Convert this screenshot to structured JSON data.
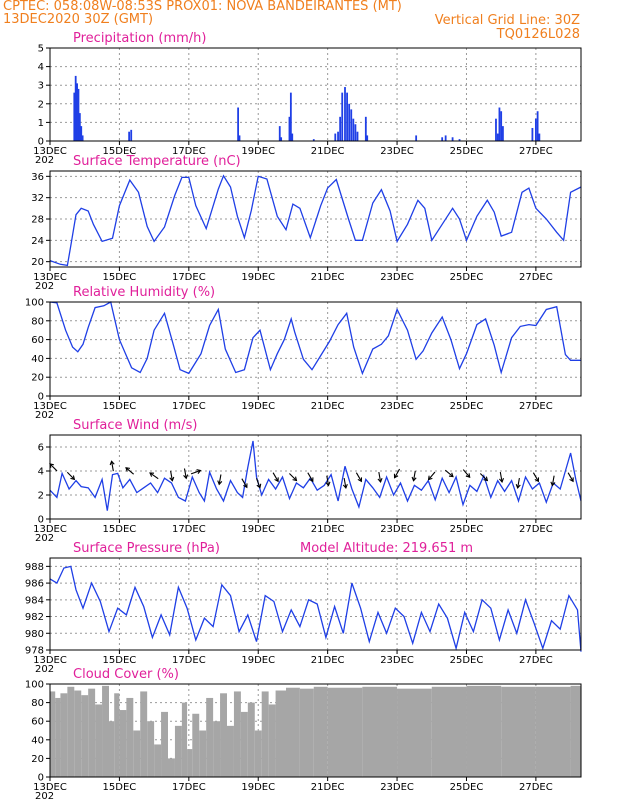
{
  "header": {
    "line1_left": "CPTEC:   058:08W-08:53S   PROX01: NOVA BANDEIRANTES (MT)",
    "line2_left": "13DEC2020 30Z (GMT)",
    "line2_right": "Vertical Grid Line: 30Z",
    "line3_right": "TQ0126L028"
  },
  "colors": {
    "header": "#f07f1e",
    "title": "#e0209a",
    "series": "#1f3fe6",
    "cloud": "#a6a6a6"
  },
  "x_axis": {
    "tick_labels": [
      "13DEC",
      "15DEC",
      "17DEC",
      "19DEC",
      "21DEC",
      "23DEC",
      "25DEC",
      "27DEC"
    ],
    "tick_days": [
      0,
      2,
      4,
      6,
      8,
      10,
      12,
      14
    ],
    "range_days": [
      0,
      15.3
    ],
    "year_fragment": "202"
  },
  "chart_data": [
    {
      "id": "precip",
      "type": "bar",
      "title": "Precipitation (mm/h)",
      "ylim": [
        0,
        5
      ],
      "yticks": [
        0,
        1,
        2,
        3,
        4,
        5
      ],
      "grid": true,
      "note": "x values in days after 13DEC 00Z",
      "x": [
        0.7,
        0.74,
        0.78,
        0.82,
        0.86,
        0.9,
        0.94,
        2.28,
        2.34,
        5.42,
        5.46,
        6.62,
        6.66,
        6.9,
        6.94,
        6.98,
        7.6,
        8.22,
        8.3,
        8.36,
        8.42,
        8.5,
        8.56,
        8.62,
        8.68,
        8.74,
        8.8,
        8.86,
        9.1,
        9.14,
        10.55,
        11.3,
        11.4,
        11.6,
        11.8,
        12.85,
        12.9,
        12.95,
        13.0,
        13.05,
        13.9,
        14.0,
        14.05,
        14.1
      ],
      "values": [
        2.6,
        3.5,
        3.1,
        2.8,
        1.5,
        0.8,
        0.3,
        0.5,
        0.6,
        1.8,
        0.3,
        0.8,
        0.2,
        1.3,
        2.6,
        0.4,
        0.1,
        0.4,
        0.5,
        1.3,
        2.6,
        2.9,
        2.6,
        2.0,
        1.7,
        1.2,
        0.9,
        0.5,
        1.3,
        0.3,
        0.3,
        0.2,
        0.3,
        0.2,
        0.1,
        1.2,
        0.4,
        1.8,
        1.6,
        0.8,
        0.7,
        1.2,
        1.6,
        0.4
      ]
    },
    {
      "id": "temp",
      "type": "line",
      "title": "Surface Temperature (nC)",
      "ylim": [
        19,
        37
      ],
      "yticks": [
        20,
        24,
        28,
        32,
        36
      ],
      "grid": true,
      "x": [
        0,
        0.3,
        0.5,
        0.6,
        0.75,
        0.9,
        1.1,
        1.25,
        1.5,
        1.8,
        2.0,
        2.3,
        2.55,
        2.8,
        3.0,
        3.3,
        3.6,
        3.8,
        4.0,
        4.2,
        4.5,
        4.85,
        5.0,
        5.2,
        5.4,
        5.6,
        5.8,
        6.0,
        6.25,
        6.55,
        6.8,
        7.0,
        7.2,
        7.5,
        7.8,
        8.0,
        8.25,
        8.6,
        8.8,
        9.0,
        9.3,
        9.55,
        9.8,
        10.0,
        10.3,
        10.6,
        10.8,
        11.0,
        11.3,
        11.6,
        11.8,
        12.0,
        12.3,
        12.6,
        12.8,
        13.0,
        13.3,
        13.6,
        13.8,
        14.0,
        14.3,
        14.6,
        14.8,
        15.0,
        15.3
      ],
      "y": [
        20.2,
        19.5,
        19.3,
        23.0,
        28.8,
        30.0,
        29.5,
        27.0,
        23.8,
        24.4,
        30.5,
        35.3,
        33.0,
        26.6,
        23.8,
        26.5,
        32.5,
        35.8,
        35.8,
        30.5,
        26.2,
        33.6,
        36.1,
        34.0,
        28.5,
        24.5,
        29.6,
        36.0,
        35.5,
        28.5,
        26.0,
        30.8,
        30.0,
        24.5,
        30.5,
        33.8,
        35.4,
        28.0,
        24.0,
        24.0,
        31.0,
        33.5,
        29.5,
        23.8,
        27.0,
        31.5,
        30.0,
        24.0,
        27.0,
        30.0,
        28.0,
        24.0,
        28.5,
        31.5,
        29.3,
        24.8,
        25.5,
        33.0,
        33.8,
        30.0,
        28.0,
        25.5,
        24.0,
        33.0,
        34.0
      ]
    },
    {
      "id": "rh",
      "type": "line",
      "title": "Relative Humidity (%)",
      "ylim": [
        0,
        100
      ],
      "yticks": [
        0,
        20,
        40,
        60,
        80,
        100
      ],
      "grid": true,
      "x": [
        0,
        0.2,
        0.45,
        0.65,
        0.8,
        0.95,
        1.1,
        1.3,
        1.55,
        1.75,
        2.0,
        2.35,
        2.6,
        2.8,
        3.0,
        3.3,
        3.55,
        3.75,
        4.0,
        4.35,
        4.6,
        4.85,
        5.05,
        5.35,
        5.6,
        5.85,
        6.05,
        6.35,
        6.55,
        6.75,
        6.95,
        7.05,
        7.3,
        7.55,
        7.75,
        8.05,
        8.3,
        8.55,
        8.75,
        9.0,
        9.3,
        9.55,
        9.75,
        10.0,
        10.3,
        10.55,
        10.75,
        11.0,
        11.3,
        11.55,
        11.8,
        12.0,
        12.3,
        12.55,
        12.8,
        13.0,
        13.3,
        13.55,
        13.8,
        14.0,
        14.3,
        14.6,
        14.85,
        15.0,
        15.3
      ],
      "y": [
        100,
        99,
        70,
        52,
        47,
        55,
        73,
        94,
        96,
        100,
        60,
        30,
        25,
        40,
        70,
        88,
        55,
        28,
        24,
        45,
        75,
        92,
        50,
        25,
        28,
        62,
        70,
        28,
        45,
        60,
        82,
        68,
        39,
        28,
        40,
        58,
        76,
        88,
        52,
        24,
        50,
        55,
        64,
        92,
        70,
        39,
        48,
        67,
        84,
        60,
        29,
        45,
        76,
        82,
        54,
        25,
        62,
        74,
        76,
        75,
        92,
        95,
        44,
        38,
        38
      ]
    },
    {
      "id": "wind",
      "type": "line",
      "title": "Surface Wind (m/s)",
      "ylim": [
        0,
        7
      ],
      "yticks": [
        0,
        2,
        4,
        6
      ],
      "grid": true,
      "x": [
        0,
        0.2,
        0.35,
        0.55,
        0.75,
        0.9,
        1.1,
        1.3,
        1.5,
        1.65,
        1.8,
        1.95,
        2.1,
        2.3,
        2.5,
        2.7,
        2.9,
        3.1,
        3.3,
        3.5,
        3.7,
        3.9,
        4.1,
        4.3,
        4.45,
        4.6,
        4.8,
        5.0,
        5.2,
        5.4,
        5.55,
        5.7,
        5.85,
        5.95,
        6.1,
        6.3,
        6.5,
        6.7,
        6.9,
        7.1,
        7.3,
        7.5,
        7.7,
        7.9,
        8.1,
        8.3,
        8.5,
        8.7,
        8.9,
        9.1,
        9.3,
        9.5,
        9.7,
        9.9,
        10.1,
        10.3,
        10.5,
        10.7,
        10.9,
        11.1,
        11.3,
        11.5,
        11.7,
        11.9,
        12.1,
        12.3,
        12.5,
        12.7,
        12.9,
        13.1,
        13.3,
        13.5,
        13.7,
        13.9,
        14.1,
        14.3,
        14.5,
        14.7,
        14.85,
        15.0,
        15.15,
        15.3
      ],
      "y": [
        2.4,
        1.8,
        3.8,
        2.5,
        3.2,
        2.7,
        2.6,
        1.8,
        3.3,
        0.7,
        3.7,
        3.8,
        2.6,
        3.3,
        2.2,
        2.6,
        3.0,
        2.2,
        3.4,
        3.0,
        1.8,
        1.5,
        3.5,
        2.2,
        1.5,
        3.9,
        2.5,
        1.5,
        3.2,
        2.2,
        1.8,
        4.3,
        6.5,
        3.5,
        2.0,
        3.3,
        2.5,
        3.5,
        1.7,
        3.0,
        2.6,
        3.4,
        2.4,
        2.8,
        3.7,
        1.5,
        4.4,
        2.5,
        1.0,
        3.3,
        2.6,
        1.8,
        3.5,
        2.0,
        3.0,
        1.5,
        2.8,
        2.4,
        3.2,
        1.6,
        3.4,
        2.2,
        3.5,
        1.2,
        2.8,
        2.3,
        3.6,
        1.8,
        3.2,
        2.3,
        3.2,
        1.5,
        3.5,
        2.5,
        3.0,
        1.4,
        3.0,
        2.5,
        4.0,
        5.5,
        3.3,
        1.5
      ]
    },
    {
      "id": "pres",
      "type": "line",
      "title": "Surface Pressure (hPa)",
      "annotation": "Model Altitude: 219.651 m",
      "ylim": [
        978,
        989
      ],
      "yticks": [
        978,
        980,
        982,
        984,
        986,
        988
      ],
      "grid": true,
      "x": [
        0,
        0.2,
        0.4,
        0.6,
        0.75,
        0.95,
        1.2,
        1.45,
        1.7,
        1.95,
        2.2,
        2.45,
        2.7,
        2.95,
        3.2,
        3.45,
        3.7,
        3.95,
        4.2,
        4.45,
        4.7,
        4.95,
        5.2,
        5.45,
        5.7,
        5.95,
        6.2,
        6.45,
        6.7,
        6.95,
        7.2,
        7.45,
        7.7,
        7.95,
        8.2,
        8.45,
        8.7,
        8.95,
        9.2,
        9.45,
        9.7,
        9.95,
        10.2,
        10.45,
        10.7,
        10.95,
        11.2,
        11.45,
        11.7,
        11.95,
        12.2,
        12.45,
        12.7,
        12.95,
        13.2,
        13.45,
        13.7,
        13.95,
        14.2,
        14.45,
        14.7,
        14.95,
        15.2,
        15.3
      ],
      "y": [
        986.5,
        986.0,
        987.8,
        988.0,
        985.2,
        983.0,
        986.0,
        983.8,
        980.2,
        983.0,
        982.2,
        985.5,
        983.2,
        979.5,
        982.2,
        979.8,
        985.5,
        983.0,
        979.2,
        981.8,
        980.8,
        985.8,
        984.5,
        980.2,
        982.2,
        979.0,
        984.5,
        983.8,
        980.2,
        982.8,
        980.8,
        984.0,
        983.5,
        979.5,
        983.2,
        980.0,
        986.0,
        983.0,
        979.0,
        982.5,
        980.0,
        983.0,
        982.0,
        978.8,
        982.5,
        980.2,
        983.5,
        981.8,
        978.2,
        982.5,
        980.2,
        984.0,
        983.0,
        979.2,
        982.8,
        980.0,
        984.0,
        981.2,
        978.2,
        981.5,
        980.5,
        984.5,
        982.8,
        977.8
      ]
    },
    {
      "id": "cloud",
      "type": "area",
      "title": "Cloud Cover (%)",
      "ylim": [
        0,
        100
      ],
      "yticks": [
        0,
        20,
        40,
        60,
        80,
        100
      ],
      "grid": true,
      "x": [
        0,
        0.15,
        0.3,
        0.5,
        0.7,
        0.9,
        1.1,
        1.3,
        1.5,
        1.7,
        1.85,
        2.0,
        2.2,
        2.4,
        2.6,
        2.8,
        3.0,
        3.2,
        3.4,
        3.6,
        3.8,
        3.95,
        4.1,
        4.3,
        4.5,
        4.7,
        4.9,
        5.1,
        5.3,
        5.5,
        5.7,
        5.9,
        6.1,
        6.3,
        6.5,
        6.8,
        7.2,
        7.6,
        8.0,
        9.0,
        10.0,
        11.0,
        12.0,
        13.0,
        14.0,
        15.0,
        15.3
      ],
      "y": [
        92,
        85,
        90,
        97,
        93,
        88,
        95,
        78,
        98,
        60,
        90,
        72,
        85,
        50,
        92,
        60,
        35,
        70,
        20,
        55,
        80,
        30,
        68,
        50,
        85,
        60,
        90,
        55,
        92,
        70,
        80,
        50,
        92,
        78,
        93,
        96,
        95,
        97,
        96,
        97,
        95,
        97,
        98,
        97,
        97,
        98,
        96
      ]
    }
  ],
  "wind_arrows": {
    "note": "direction of arrow tip in degrees (0=east, 90=north), y in m/s",
    "x": [
      0.1,
      0.6,
      1.8,
      2.3,
      3.0,
      3.5,
      3.9,
      4.2,
      4.9,
      5.6,
      6.0,
      6.5,
      7.0,
      7.5,
      8.0,
      8.5,
      8.9,
      9.5,
      10.0,
      10.5,
      11.0,
      11.5,
      12.0,
      12.5,
      13.0,
      13.5,
      14.0,
      14.5,
      15.0
    ],
    "y": [
      4.3,
      3.6,
      4.4,
      4.0,
      3.6,
      3.6,
      3.8,
      3.9,
      3.3,
      3.0,
      3.0,
      3.5,
      3.5,
      3.5,
      3.2,
      3.0,
      3.5,
      3.5,
      3.8,
      3.6,
      3.6,
      3.8,
      3.8,
      3.5,
      3.5,
      3.0,
      3.5,
      3.2,
      3.5
    ],
    "dir": [
      135,
      -45,
      100,
      140,
      145,
      -80,
      -80,
      20,
      -100,
      -60,
      -70,
      -60,
      -45,
      -60,
      -80,
      -80,
      -60,
      -80,
      -120,
      -100,
      -130,
      -40,
      -50,
      -45,
      -80,
      -100,
      -60,
      -100,
      -60
    ]
  }
}
